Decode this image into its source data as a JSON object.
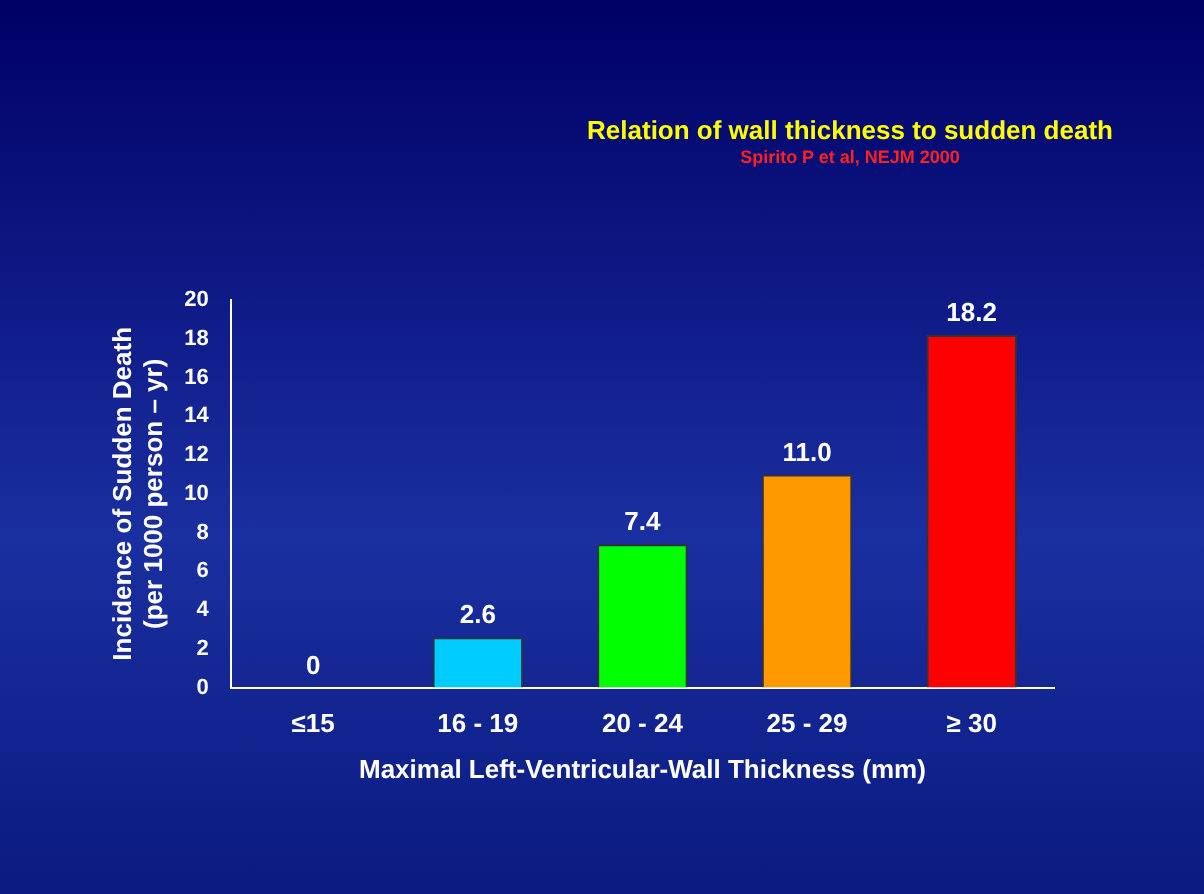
{
  "chart_data": {
    "type": "bar",
    "title": "Relation of wall thickness to sudden death",
    "subtitle": "Spirito P et al, NEJM 2000",
    "xlabel": "Maximal Left-Ventricular-Wall Thickness (mm)",
    "ylabel": "Incidence of Sudden Death\n(per 1000 person – yr)",
    "categories": [
      "≤15",
      "16 - 19",
      "20 - 24",
      "25 - 29",
      "≥ 30"
    ],
    "values": [
      0,
      2.6,
      7.4,
      11.0,
      18.2
    ],
    "colors": [
      "#ffffff",
      "#00ccff",
      "#00ff00",
      "#ff9900",
      "#ff0000"
    ],
    "value_labels": [
      "0",
      "2.6",
      "7.4",
      "11.0",
      "18.2"
    ],
    "ylim": [
      0,
      20
    ],
    "yticks": [
      0,
      2,
      4,
      6,
      8,
      10,
      12,
      14,
      16,
      18,
      20
    ],
    "grid": false,
    "legend": false
  }
}
